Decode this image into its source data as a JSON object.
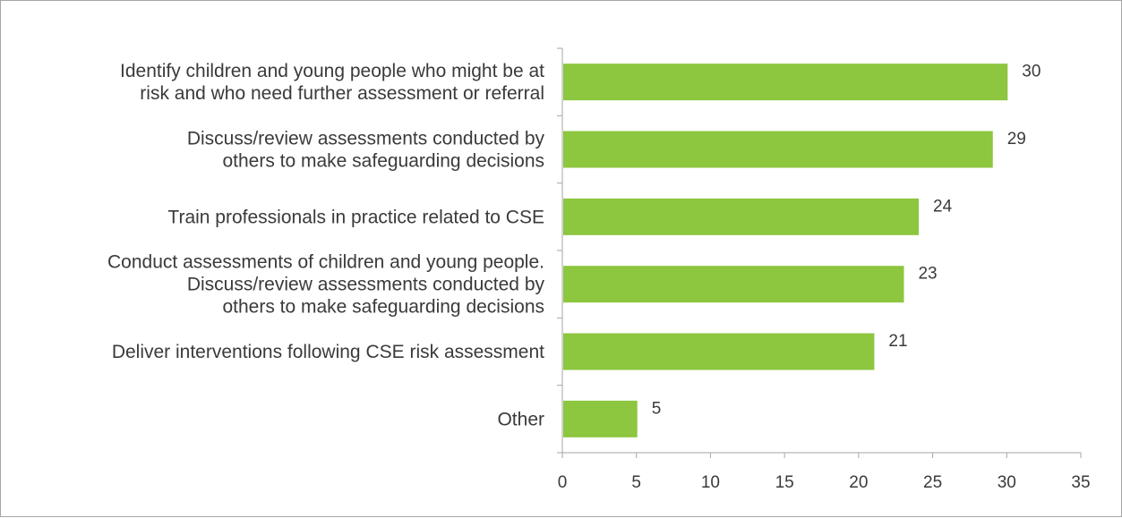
{
  "chart_data": {
    "type": "bar",
    "orientation": "horizontal",
    "categories": [
      [
        "Identify children and young people who might be at",
        "risk and who need further assessment or referral"
      ],
      [
        "Discuss/review assessments conducted by",
        "others to make safeguarding decisions"
      ],
      [
        "Train professionals in practice related to CSE"
      ],
      [
        "Conduct assessments of children and young people.",
        "Discuss/review assessments conducted by",
        "others to make safeguarding decisions"
      ],
      [
        "Deliver interventions following CSE risk assessment"
      ],
      [
        "Other"
      ]
    ],
    "values": [
      30,
      29,
      24,
      23,
      21,
      5
    ],
    "xlim": [
      0,
      35
    ],
    "xticks": [
      0,
      5,
      10,
      15,
      20,
      25,
      30,
      35
    ],
    "title": "",
    "xlabel": "",
    "ylabel": "",
    "grid": false,
    "legend": "none",
    "bar_color": "#8dc63f",
    "axis_color": "#a6a6a6"
  }
}
